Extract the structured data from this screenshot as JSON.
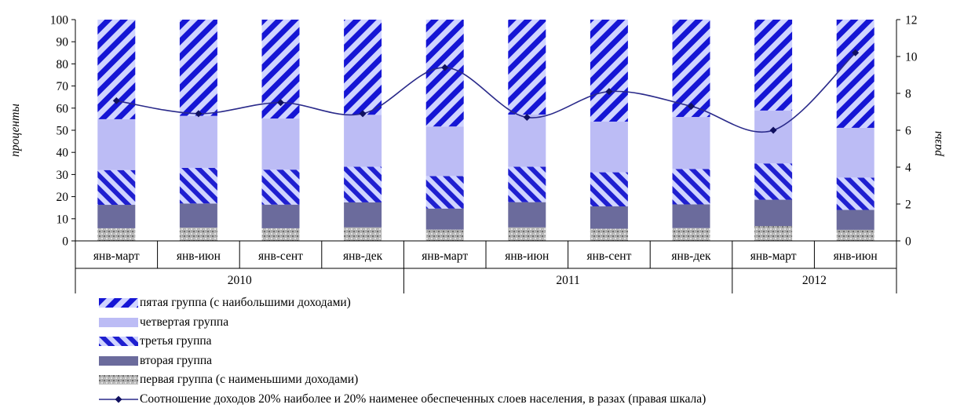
{
  "chart_data": {
    "type": "bar",
    "stacked": true,
    "categories": [
      "янв-март",
      "янв-июн",
      "янв-сент",
      "янв-дек",
      "янв-март",
      "янв-июн",
      "янв-сент",
      "янв-дек",
      "янв-март",
      "янв-июн"
    ],
    "year_groups": [
      {
        "label": "2010",
        "start": 0,
        "end": 3
      },
      {
        "label": "2011",
        "start": 4,
        "end": 7
      },
      {
        "label": "2012",
        "start": 8,
        "end": 9
      }
    ],
    "series": [
      {
        "name": "первая группа (с наименьшими доходами)",
        "color": "#b0b0b0",
        "pattern": "speckle",
        "values": [
          5.7,
          6.0,
          5.7,
          6.1,
          5.1,
          6.1,
          5.5,
          5.8,
          6.7,
          5.0
        ]
      },
      {
        "name": "вторая группа",
        "color": "#6b6b9c",
        "pattern": "solid",
        "values": [
          10.6,
          10.9,
          10.7,
          11.3,
          9.5,
          11.4,
          10.1,
          10.7,
          11.9,
          9.0
        ]
      },
      {
        "name": "третья группа",
        "color": "#1f1fd0",
        "pattern": "stripe",
        "values": [
          15.7,
          16.1,
          15.8,
          16.1,
          14.7,
          16.0,
          15.4,
          16.0,
          16.4,
          14.6
        ]
      },
      {
        "name": "четвертая группа",
        "color": "#bcbcf5",
        "pattern": "solid",
        "values": [
          23.0,
          23.5,
          23.1,
          23.5,
          22.4,
          23.6,
          22.9,
          23.5,
          23.9,
          22.5
        ]
      },
      {
        "name": "пятая группа (с наибольшими доходами)",
        "color": "#1515d5",
        "pattern": "stripe-wide",
        "values": [
          45.0,
          43.5,
          44.7,
          43.0,
          48.3,
          42.9,
          46.1,
          44.0,
          41.1,
          48.9
        ]
      }
    ],
    "line_series": {
      "name": "Соотношение доходов 20% наиболее и 20% наименее обеспеченных слоев населения, в разах (правая шкала)",
      "color": "#2a2a8a",
      "axis": "right",
      "values": [
        7.6,
        6.9,
        7.5,
        6.9,
        9.4,
        6.7,
        8.1,
        7.3,
        6.0,
        10.2
      ]
    },
    "y_left": {
      "label": "проценты",
      "min": 0,
      "max": 100,
      "ticks": [
        "0",
        "10",
        "20",
        "30",
        "40",
        "50",
        "60",
        "70",
        "80",
        "90",
        "100"
      ]
    },
    "y_right": {
      "label": "разы",
      "min": 0,
      "max": 12,
      "ticks": [
        "0",
        "2",
        "4",
        "6",
        "8",
        "10",
        "12"
      ]
    },
    "legend_position": "bottom",
    "legend_order": [
      4,
      3,
      2,
      1,
      0
    ],
    "grid": false
  }
}
